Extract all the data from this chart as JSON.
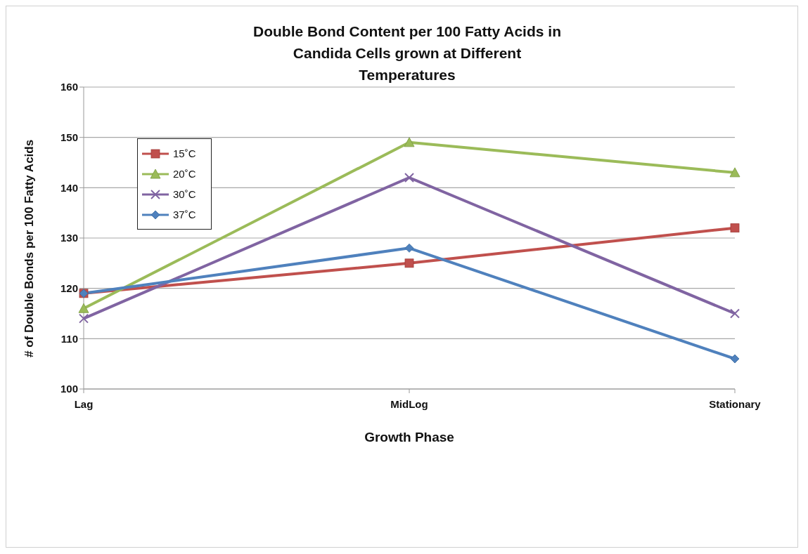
{
  "chart_data": {
    "type": "line",
    "title": "Double Bond Content per 100 Fatty Acids in Candida Cells grown at Different Temperatures",
    "xlabel": "Growth Phase",
    "ylabel": "# of Double Bonds per 100 Fatty Acids",
    "categories": [
      "Lag",
      "MidLog",
      "Stationary"
    ],
    "series": [
      {
        "name": "15˚C",
        "color": "#c0504d",
        "marker": "square",
        "values": [
          119,
          125,
          132
        ]
      },
      {
        "name": "20˚C",
        "color": "#9bbb59",
        "marker": "triangle",
        "values": [
          116,
          149,
          143
        ]
      },
      {
        "name": "30˚C",
        "color": "#8064a2",
        "marker": "cross",
        "values": [
          114,
          142,
          115
        ]
      },
      {
        "name": "37˚C",
        "color": "#4f81bd",
        "marker": "diamond",
        "values": [
          119,
          128,
          106
        ]
      }
    ],
    "ylim": [
      100,
      160
    ],
    "yticks": [
      100,
      110,
      120,
      130,
      140,
      150,
      160
    ],
    "grid": "y",
    "legend": "top left",
    "line_style": "solid"
  }
}
